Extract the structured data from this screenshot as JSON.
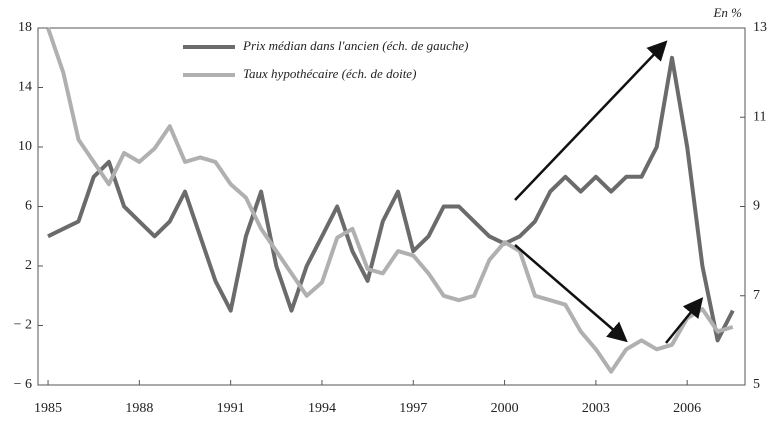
{
  "chart_data": {
    "type": "line",
    "unit_label": "En %",
    "x": [
      1985,
      1985.5,
      1986,
      1986.5,
      1987,
      1987.5,
      1988,
      1988.5,
      1989,
      1989.5,
      1990,
      1990.5,
      1991,
      1991.5,
      1992,
      1992.5,
      1993,
      1993.5,
      1994,
      1994.5,
      1995,
      1995.5,
      1996,
      1996.5,
      1997,
      1997.5,
      1998,
      1998.5,
      1999,
      1999.5,
      2000,
      2000.5,
      2001,
      2001.5,
      2002,
      2002.5,
      2003,
      2003.5,
      2004,
      2004.5,
      2005,
      2005.5,
      2006,
      2006.5,
      2007,
      2007.5
    ],
    "series": [
      {
        "name": "Prix médian dans l'ancien (éch. de gauche)",
        "color": "#6b6b6b",
        "axis": "y",
        "values": [
          4,
          4.5,
          5,
          8,
          9,
          6,
          5,
          4,
          5,
          7,
          4,
          1,
          -1,
          4,
          7,
          2,
          -1,
          2,
          4,
          6,
          3,
          1,
          5,
          7,
          3,
          4,
          6,
          6,
          5,
          4,
          3.5,
          4,
          5,
          7,
          8,
          7,
          8,
          7,
          8,
          8,
          10,
          16,
          10,
          2,
          -3,
          -1
        ]
      },
      {
        "name": "Taux hypothécaire (éch. de doite)",
        "color": "#b0b0b0",
        "axis": "y2",
        "values": [
          13,
          12,
          10.5,
          10,
          9.5,
          10.2,
          10,
          10.3,
          10.8,
          10,
          10.1,
          10,
          9.5,
          9.2,
          8.5,
          8,
          7.5,
          7,
          7.3,
          8.3,
          8.5,
          7.6,
          7.5,
          8,
          7.9,
          7.5,
          7,
          6.9,
          7,
          7.8,
          8.2,
          8,
          7,
          6.9,
          6.8,
          6.2,
          5.8,
          5.3,
          5.8,
          6,
          5.8,
          5.9,
          6.5,
          6.7,
          6.2,
          6.3
        ]
      }
    ],
    "xlim": [
      1984.67,
      2007.9
    ],
    "xticks": [
      1985,
      1988,
      1991,
      1994,
      1997,
      2000,
      2003,
      2006
    ],
    "ylim": [
      -6,
      18
    ],
    "yticks": [
      {
        "value": -6,
        "label": "− 6"
      },
      {
        "value": -2,
        "label": "− 2"
      },
      2,
      6,
      10,
      14,
      18
    ],
    "y2lim": [
      5,
      13
    ],
    "y2ticks": [
      5,
      7,
      9,
      11,
      13
    ]
  }
}
